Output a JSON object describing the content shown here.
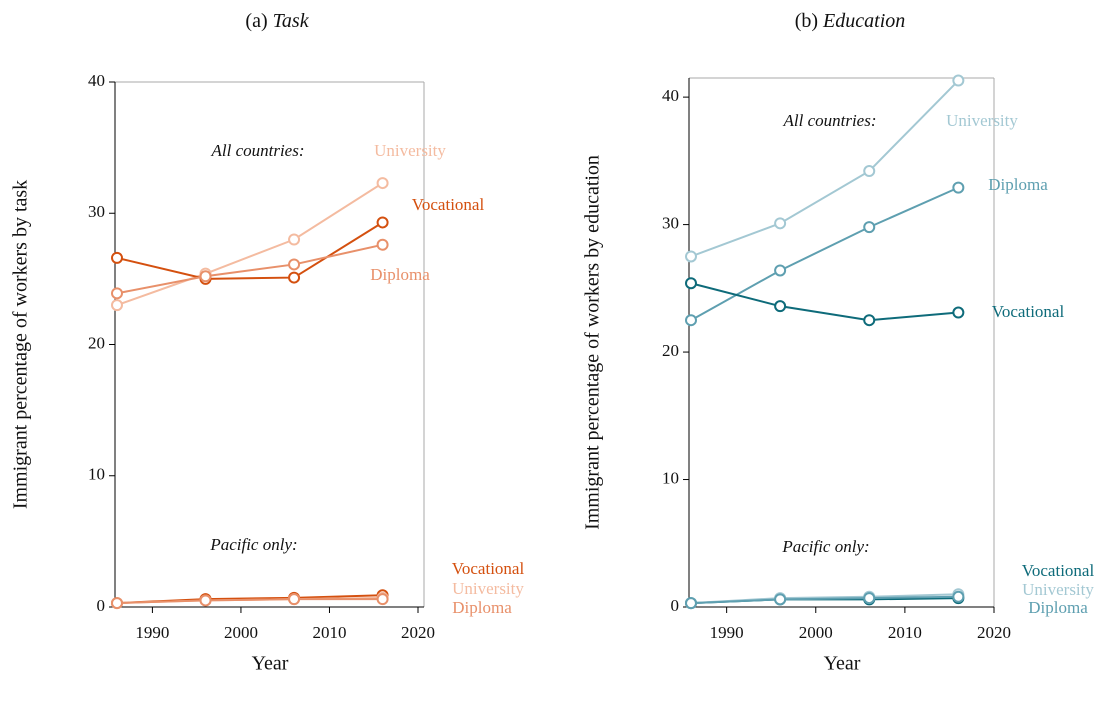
{
  "chart_data": [
    {
      "type": "line",
      "panel": "(a)",
      "title": "Task",
      "xlabel": "Year",
      "ylabel": "Immigrant percentage of workers by task",
      "annotations": [
        "All countries:",
        "Pacific only:"
      ],
      "x": [
        1986,
        1996,
        2006,
        2016
      ],
      "series": [
        {
          "name": "University",
          "color": "#f4bba0",
          "values": [
            23.0,
            25.4,
            28.0,
            32.3
          ]
        },
        {
          "name": "Vocational",
          "color": "#d4500f",
          "values": [
            26.6,
            25.0,
            25.1,
            29.3
          ]
        },
        {
          "name": "Diploma",
          "color": "#e8906a",
          "values": [
            23.9,
            25.2,
            26.1,
            27.6
          ]
        },
        {
          "name": "Vocational",
          "color": "#d4500f",
          "values": [
            0.3,
            0.6,
            0.7,
            0.9
          ]
        },
        {
          "name": "University",
          "color": "#f4bba0",
          "values": [
            0.3,
            0.5,
            0.6,
            0.7
          ]
        },
        {
          "name": "Diploma",
          "color": "#e8906a",
          "values": [
            0.3,
            0.5,
            0.6,
            0.6
          ]
        }
      ],
      "xlim": [
        1986,
        2020
      ],
      "xticks": [
        1990,
        2000,
        2010,
        2020
      ],
      "ylim": [
        0,
        40
      ],
      "yticks": [
        0,
        10,
        20,
        30,
        40
      ]
    },
    {
      "type": "line",
      "panel": "(b)",
      "title": "Education",
      "xlabel": "Year",
      "ylabel": "Immigrant percentage of workers by education",
      "annotations": [
        "All countries:",
        "Pacific only:"
      ],
      "x": [
        1986,
        1996,
        2006,
        2016
      ],
      "series": [
        {
          "name": "University",
          "color": "#a3c8d3",
          "values": [
            27.5,
            30.1,
            34.2,
            41.3
          ]
        },
        {
          "name": "Diploma",
          "color": "#5e9fb0",
          "values": [
            22.5,
            26.4,
            29.8,
            32.9
          ]
        },
        {
          "name": "Vocational",
          "color": "#0e6b7a",
          "values": [
            25.4,
            23.6,
            22.5,
            23.1
          ]
        },
        {
          "name": "Vocational",
          "color": "#0e6b7a",
          "values": [
            0.3,
            0.6,
            0.6,
            0.7
          ]
        },
        {
          "name": "University",
          "color": "#a3c8d3",
          "values": [
            0.3,
            0.7,
            0.8,
            1.0
          ]
        },
        {
          "name": "Diploma",
          "color": "#5e9fb0",
          "values": [
            0.3,
            0.6,
            0.7,
            0.8
          ]
        }
      ],
      "xlim": [
        1986,
        2020
      ],
      "xticks": [
        1990,
        2000,
        2010,
        2020
      ],
      "ylim": [
        0,
        41.5
      ],
      "yticks": [
        0,
        10,
        20,
        30,
        40
      ]
    }
  ]
}
